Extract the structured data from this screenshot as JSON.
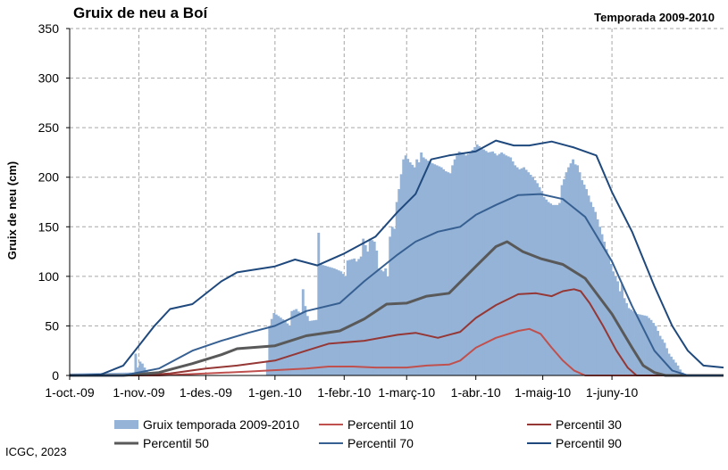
{
  "chart_data": {
    "type": "bar",
    "title": "Gruix de neu a Boí",
    "subtitle": "Temporada 2009-2010",
    "ylabel": "Gruix de neu (cm)",
    "xlabel": "",
    "ylim": [
      0,
      350
    ],
    "yticks": [
      0,
      50,
      100,
      150,
      200,
      250,
      300,
      350
    ],
    "xlim": [
      "2009-10-01",
      "2010-07-21"
    ],
    "xtick_labels": [
      {
        "date": "2009-10-01",
        "label": "1-oct.-09"
      },
      {
        "date": "2009-11-01",
        "label": "1-nov.-09"
      },
      {
        "date": "2009-12-01",
        "label": "1-des.-09"
      },
      {
        "date": "2010-01-01",
        "label": "1-gen.-10"
      },
      {
        "date": "2010-02-01",
        "label": "1-febr.-10"
      },
      {
        "date": "2010-03-01",
        "label": "1-març-10"
      },
      {
        "date": "2010-04-01",
        "label": "1-abr.-10"
      },
      {
        "date": "2010-05-01",
        "label": "1-maig-10"
      },
      {
        "date": "2010-06-01",
        "label": "1-juny-10"
      }
    ],
    "grid": true,
    "legend_position": "bottom",
    "bars": {
      "name": "Gruix temporada 2009-2010",
      "color": "#95b3d7",
      "points": [
        [
          "2009-10-01",
          2
        ],
        [
          "2009-10-29",
          3
        ],
        [
          "2009-10-30",
          22
        ],
        [
          "2009-10-31",
          8
        ],
        [
          "2009-11-01",
          14
        ],
        [
          "2009-11-02",
          12
        ],
        [
          "2009-11-03",
          8
        ],
        [
          "2009-11-04",
          4
        ],
        [
          "2009-11-05",
          0
        ],
        [
          "2009-12-27",
          0
        ],
        [
          "2009-12-28",
          15
        ],
        [
          "2009-12-29",
          50
        ],
        [
          "2009-12-30",
          57
        ],
        [
          "2009-12-31",
          63
        ],
        [
          "2010-01-02",
          60
        ],
        [
          "2010-01-05",
          55
        ],
        [
          "2010-01-07",
          50
        ],
        [
          "2010-01-08",
          65
        ],
        [
          "2010-01-10",
          67
        ],
        [
          "2010-01-12",
          62
        ],
        [
          "2010-01-13",
          87
        ],
        [
          "2010-01-14",
          70
        ],
        [
          "2010-01-15",
          60
        ],
        [
          "2010-01-16",
          55
        ],
        [
          "2010-01-19",
          56
        ],
        [
          "2010-01-20",
          144
        ],
        [
          "2010-01-21",
          112
        ],
        [
          "2010-01-24",
          110
        ],
        [
          "2010-01-27",
          108
        ],
        [
          "2010-01-30",
          105
        ],
        [
          "2010-02-01",
          100
        ],
        [
          "2010-02-02",
          116
        ],
        [
          "2010-02-05",
          118
        ],
        [
          "2010-02-06",
          115
        ],
        [
          "2010-02-08",
          120
        ],
        [
          "2010-02-09",
          138
        ],
        [
          "2010-02-11",
          125
        ],
        [
          "2010-02-12",
          138
        ],
        [
          "2010-02-14",
          135
        ],
        [
          "2010-02-15",
          126
        ],
        [
          "2010-02-16",
          108
        ],
        [
          "2010-02-18",
          105
        ],
        [
          "2010-02-19",
          108
        ],
        [
          "2010-02-20",
          100
        ],
        [
          "2010-02-21",
          140
        ],
        [
          "2010-02-22",
          150
        ],
        [
          "2010-02-23",
          148
        ],
        [
          "2010-02-24",
          175
        ],
        [
          "2010-02-25",
          188
        ],
        [
          "2010-02-27",
          218
        ],
        [
          "2010-02-28",
          222
        ],
        [
          "2010-03-02",
          215
        ],
        [
          "2010-03-04",
          210
        ],
        [
          "2010-03-05",
          218
        ],
        [
          "2010-03-06",
          215
        ],
        [
          "2010-03-07",
          225
        ],
        [
          "2010-03-08",
          220
        ],
        [
          "2010-03-11",
          215
        ],
        [
          "2010-03-14",
          212
        ],
        [
          "2010-03-16",
          210
        ],
        [
          "2010-03-18",
          206
        ],
        [
          "2010-03-20",
          204
        ],
        [
          "2010-03-21",
          212
        ],
        [
          "2010-03-22",
          218
        ],
        [
          "2010-03-23",
          222
        ],
        [
          "2010-03-24",
          226
        ],
        [
          "2010-03-25",
          225
        ],
        [
          "2010-03-27",
          222
        ],
        [
          "2010-03-29",
          225
        ],
        [
          "2010-04-01",
          233
        ],
        [
          "2010-04-04",
          228
        ],
        [
          "2010-04-06",
          225
        ],
        [
          "2010-04-08",
          226
        ],
        [
          "2010-04-10",
          222
        ],
        [
          "2010-04-12",
          225
        ],
        [
          "2010-04-14",
          222
        ],
        [
          "2010-04-16",
          220
        ],
        [
          "2010-04-18",
          212
        ],
        [
          "2010-04-20",
          208
        ],
        [
          "2010-04-22",
          210
        ],
        [
          "2010-04-24",
          205
        ],
        [
          "2010-04-26",
          200
        ],
        [
          "2010-04-28",
          194
        ],
        [
          "2010-04-30",
          186
        ],
        [
          "2010-05-01",
          180
        ],
        [
          "2010-05-03",
          175
        ],
        [
          "2010-05-05",
          172
        ],
        [
          "2010-05-07",
          172
        ],
        [
          "2010-05-08",
          174
        ],
        [
          "2010-05-09",
          192
        ],
        [
          "2010-05-10",
          198
        ],
        [
          "2010-05-11",
          205
        ],
        [
          "2010-05-12",
          210
        ],
        [
          "2010-05-14",
          218
        ],
        [
          "2010-05-15",
          213
        ],
        [
          "2010-05-16",
          212
        ],
        [
          "2010-05-17",
          205
        ],
        [
          "2010-05-18",
          197
        ],
        [
          "2010-05-20",
          188
        ],
        [
          "2010-05-22",
          175
        ],
        [
          "2010-05-24",
          165
        ],
        [
          "2010-05-26",
          150
        ],
        [
          "2010-05-28",
          135
        ],
        [
          "2010-05-30",
          120
        ],
        [
          "2010-06-01",
          105
        ],
        [
          "2010-06-03",
          95
        ],
        [
          "2010-06-04",
          85
        ],
        [
          "2010-06-05",
          92
        ],
        [
          "2010-06-06",
          78
        ],
        [
          "2010-06-08",
          68
        ],
        [
          "2010-06-10",
          65
        ],
        [
          "2010-06-12",
          62
        ],
        [
          "2010-06-14",
          61
        ],
        [
          "2010-06-16",
          60
        ],
        [
          "2010-06-18",
          56
        ],
        [
          "2010-06-20",
          50
        ],
        [
          "2010-06-22",
          40
        ],
        [
          "2010-06-24",
          33
        ],
        [
          "2010-06-26",
          22
        ],
        [
          "2010-06-28",
          16
        ],
        [
          "2010-06-30",
          10
        ],
        [
          "2010-07-01",
          6
        ],
        [
          "2010-07-02",
          3
        ],
        [
          "2010-07-03",
          0
        ]
      ]
    },
    "series": [
      {
        "name": "Percentil 10",
        "color": "#c0504d",
        "width": 2,
        "points": [
          [
            "2009-10-01",
            0
          ],
          [
            "2009-11-10",
            0
          ],
          [
            "2009-12-01",
            2
          ],
          [
            "2009-12-20",
            4
          ],
          [
            "2010-01-15",
            7
          ],
          [
            "2010-01-25",
            9
          ],
          [
            "2010-02-05",
            9
          ],
          [
            "2010-02-15",
            8
          ],
          [
            "2010-03-01",
            8
          ],
          [
            "2010-03-10",
            10
          ],
          [
            "2010-03-20",
            11
          ],
          [
            "2010-03-25",
            15
          ],
          [
            "2010-04-01",
            28
          ],
          [
            "2010-04-10",
            38
          ],
          [
            "2010-04-20",
            45
          ],
          [
            "2010-04-25",
            47
          ],
          [
            "2010-04-30",
            42
          ],
          [
            "2010-05-05",
            28
          ],
          [
            "2010-05-10",
            15
          ],
          [
            "2010-05-15",
            5
          ],
          [
            "2010-05-20",
            0
          ],
          [
            "2010-07-21",
            0
          ]
        ]
      },
      {
        "name": "Percentil 30",
        "color": "#953735",
        "width": 2,
        "points": [
          [
            "2009-10-01",
            0
          ],
          [
            "2009-11-01",
            0
          ],
          [
            "2009-11-15",
            2
          ],
          [
            "2009-12-01",
            7
          ],
          [
            "2009-12-15",
            10
          ],
          [
            "2010-01-01",
            15
          ],
          [
            "2010-01-15",
            25
          ],
          [
            "2010-01-25",
            32
          ],
          [
            "2010-02-10",
            35
          ],
          [
            "2010-02-25",
            41
          ],
          [
            "2010-03-05",
            43
          ],
          [
            "2010-03-15",
            38
          ],
          [
            "2010-03-25",
            44
          ],
          [
            "2010-04-01",
            58
          ],
          [
            "2010-04-10",
            71
          ],
          [
            "2010-04-20",
            82
          ],
          [
            "2010-04-28",
            83
          ],
          [
            "2010-05-05",
            80
          ],
          [
            "2010-05-10",
            85
          ],
          [
            "2010-05-15",
            87
          ],
          [
            "2010-05-18",
            85
          ],
          [
            "2010-05-22",
            73
          ],
          [
            "2010-05-28",
            50
          ],
          [
            "2010-06-03",
            25
          ],
          [
            "2010-06-08",
            8
          ],
          [
            "2010-06-12",
            0
          ],
          [
            "2010-07-21",
            0
          ]
        ]
      },
      {
        "name": "Percentil 50",
        "color": "#595959",
        "width": 3,
        "points": [
          [
            "2009-10-01",
            0
          ],
          [
            "2009-10-25",
            0
          ],
          [
            "2009-11-10",
            3
          ],
          [
            "2009-11-25",
            12
          ],
          [
            "2009-12-08",
            21
          ],
          [
            "2009-12-15",
            27
          ],
          [
            "2010-01-01",
            30
          ],
          [
            "2010-01-15",
            40
          ],
          [
            "2010-01-30",
            45
          ],
          [
            "2010-02-10",
            57
          ],
          [
            "2010-02-20",
            72
          ],
          [
            "2010-03-01",
            73
          ],
          [
            "2010-03-10",
            80
          ],
          [
            "2010-03-20",
            83
          ],
          [
            "2010-04-01",
            110
          ],
          [
            "2010-04-10",
            130
          ],
          [
            "2010-04-15",
            135
          ],
          [
            "2010-04-22",
            125
          ],
          [
            "2010-04-30",
            118
          ],
          [
            "2010-05-10",
            112
          ],
          [
            "2010-05-20",
            98
          ],
          [
            "2010-06-01",
            62
          ],
          [
            "2010-06-10",
            28
          ],
          [
            "2010-06-15",
            10
          ],
          [
            "2010-06-20",
            3
          ],
          [
            "2010-06-25",
            0
          ],
          [
            "2010-07-21",
            0
          ]
        ]
      },
      {
        "name": "Percentil 70",
        "color": "#376092",
        "width": 2,
        "points": [
          [
            "2009-10-01",
            0
          ],
          [
            "2009-10-25",
            0
          ],
          [
            "2009-11-10",
            7
          ],
          [
            "2009-11-25",
            25
          ],
          [
            "2009-12-08",
            35
          ],
          [
            "2009-12-20",
            43
          ],
          [
            "2010-01-01",
            50
          ],
          [
            "2010-01-15",
            65
          ],
          [
            "2010-01-30",
            73
          ],
          [
            "2010-02-10",
            95
          ],
          [
            "2010-02-25",
            122
          ],
          [
            "2010-03-05",
            135
          ],
          [
            "2010-03-15",
            145
          ],
          [
            "2010-03-25",
            150
          ],
          [
            "2010-04-01",
            162
          ],
          [
            "2010-04-10",
            172
          ],
          [
            "2010-04-20",
            182
          ],
          [
            "2010-04-30",
            183
          ],
          [
            "2010-05-10",
            178
          ],
          [
            "2010-05-20",
            160
          ],
          [
            "2010-06-01",
            115
          ],
          [
            "2010-06-10",
            70
          ],
          [
            "2010-06-20",
            25
          ],
          [
            "2010-06-28",
            5
          ],
          [
            "2010-07-05",
            0
          ],
          [
            "2010-07-21",
            0
          ]
        ]
      },
      {
        "name": "Percentil 90",
        "color": "#1f497d",
        "width": 2,
        "points": [
          [
            "2009-10-01",
            0
          ],
          [
            "2009-10-15",
            1
          ],
          [
            "2009-10-25",
            10
          ],
          [
            "2009-11-08",
            50
          ],
          [
            "2009-11-15",
            67
          ],
          [
            "2009-11-25",
            72
          ],
          [
            "2009-12-08",
            95
          ],
          [
            "2009-12-15",
            104
          ],
          [
            "2010-01-01",
            110
          ],
          [
            "2010-01-10",
            117
          ],
          [
            "2010-01-20",
            111
          ],
          [
            "2010-02-01",
            123
          ],
          [
            "2010-02-15",
            140
          ],
          [
            "2010-02-25",
            165
          ],
          [
            "2010-03-05",
            183
          ],
          [
            "2010-03-12",
            218
          ],
          [
            "2010-03-20",
            222
          ],
          [
            "2010-04-01",
            226
          ],
          [
            "2010-04-10",
            237
          ],
          [
            "2010-04-18",
            232
          ],
          [
            "2010-04-25",
            232
          ],
          [
            "2010-05-05",
            236
          ],
          [
            "2010-05-15",
            230
          ],
          [
            "2010-05-25",
            222
          ],
          [
            "2010-06-01",
            185
          ],
          [
            "2010-06-10",
            145
          ],
          [
            "2010-06-20",
            90
          ],
          [
            "2010-06-28",
            50
          ],
          [
            "2010-07-05",
            25
          ],
          [
            "2010-07-12",
            10
          ],
          [
            "2010-07-21",
            8
          ]
        ]
      }
    ],
    "legend": [
      {
        "label": "Gruix temporada 2009-2010",
        "kind": "bar",
        "color": "#95b3d7"
      },
      {
        "label": "Percentil 10",
        "kind": "line",
        "color": "#c0504d",
        "width": 2
      },
      {
        "label": "Percentil 30",
        "kind": "line",
        "color": "#953735",
        "width": 2
      },
      {
        "label": "Percentil 50",
        "kind": "line",
        "color": "#595959",
        "width": 3
      },
      {
        "label": "Percentil 70",
        "kind": "line",
        "color": "#376092",
        "width": 2
      },
      {
        "label": "Percentil 90",
        "kind": "line",
        "color": "#1f497d",
        "width": 2
      }
    ]
  },
  "footer": "ICGC, 2023"
}
